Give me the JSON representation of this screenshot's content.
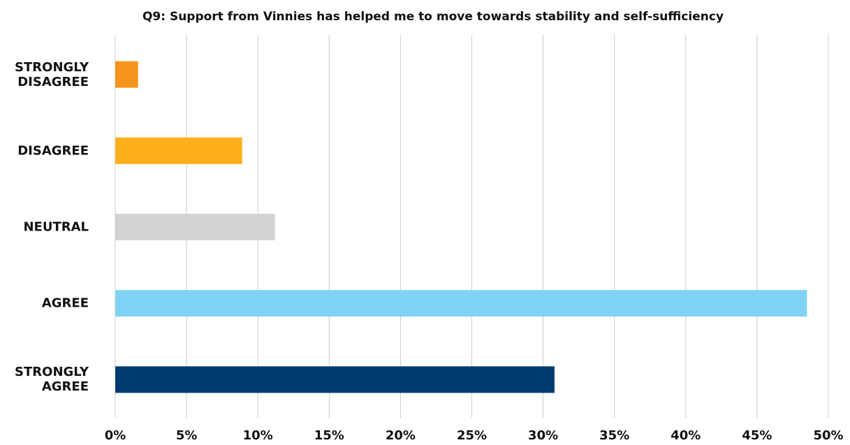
{
  "chart_data": {
    "type": "barh",
    "title": "Q9: Support from Vinnies has helped me to move towards stability and self-sufficiency",
    "categories": [
      "STRONGLY DISAGREE",
      "DISAGREE",
      "NEUTRAL",
      "AGREE",
      "STRONGLY AGREE"
    ],
    "values": [
      1.6,
      8.9,
      11.2,
      48.5,
      30.8
    ],
    "colors": [
      "#f7941d",
      "#fdb01b",
      "#d1d3d4",
      "#81d3f5",
      "#003a70"
    ],
    "xlim": [
      0,
      50
    ],
    "xticks": [
      {
        "value": 0,
        "label": "0%"
      },
      {
        "value": 5,
        "label": "5%"
      },
      {
        "value": 10,
        "label": "10%"
      },
      {
        "value": 15,
        "label": "15%"
      },
      {
        "value": 20,
        "label": "20%"
      },
      {
        "value": 25,
        "label": "25%"
      },
      {
        "value": 30,
        "label": "30%"
      },
      {
        "value": 35,
        "label": "35%"
      },
      {
        "value": 40,
        "label": "40%"
      },
      {
        "value": 45,
        "label": "45%"
      },
      {
        "value": 50,
        "label": "50%"
      }
    ],
    "grid": true
  }
}
